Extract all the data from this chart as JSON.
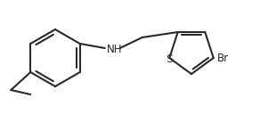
{
  "background_color": "#ffffff",
  "line_color": "#2a2a2a",
  "line_width": 1.5,
  "text_color": "#2a2a2a",
  "font_size": 8.5,
  "figsize": [
    2.92,
    1.47
  ],
  "dpi": 100,
  "xlim": [
    0,
    292
  ],
  "ylim": [
    0,
    147
  ]
}
